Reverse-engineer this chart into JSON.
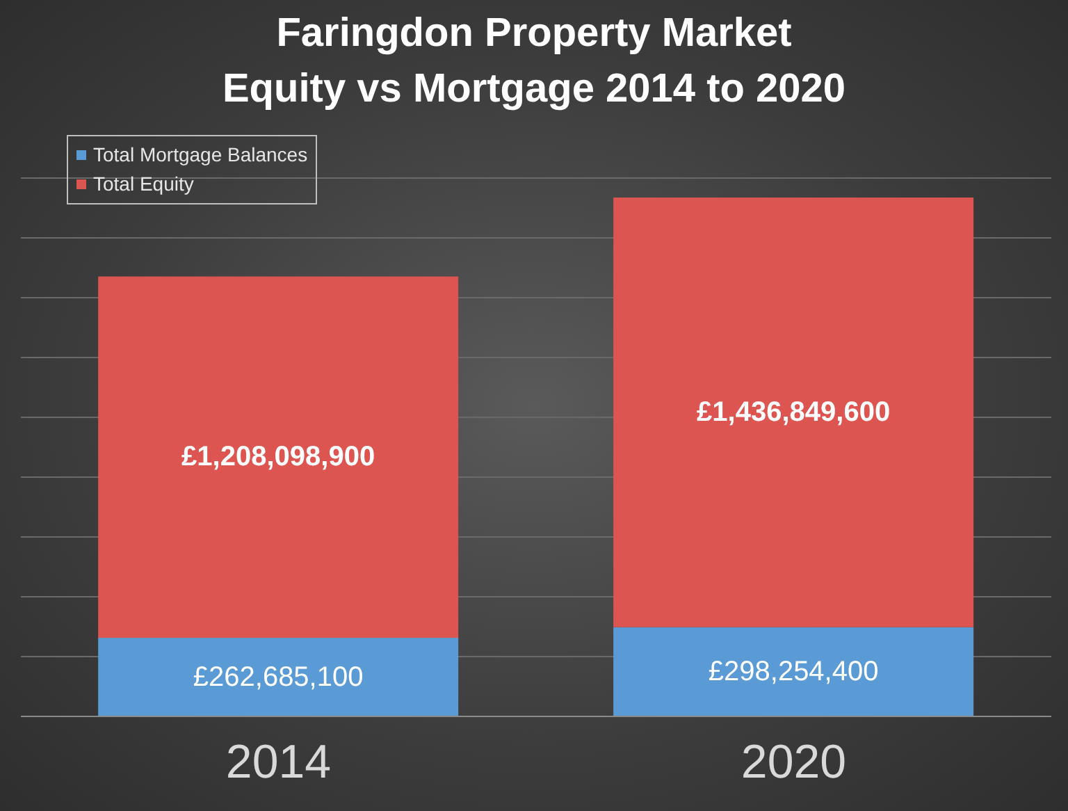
{
  "chart_data": {
    "type": "bar",
    "title": "Faringdon Property Market",
    "subtitle": "Equity vs Mortgage 2014 to 2020",
    "categories": [
      "2014",
      "2020"
    ],
    "stacked": true,
    "series": [
      {
        "name": "Total Mortgage Balances",
        "color": "#5b9bd5",
        "values": [
          262685100,
          298254400
        ],
        "value_labels": [
          "£262,685,100",
          "£298,254,400"
        ]
      },
      {
        "name": "Total Equity",
        "color": "#dc5550",
        "values": [
          1208098900,
          1436849600
        ],
        "value_labels": [
          "£1,208,098,900",
          "£1,436,849,600"
        ]
      }
    ],
    "ylim": [
      0,
      1800000000
    ],
    "yticks": [
      {
        "value": 0,
        "label": null
      },
      {
        "value": 200000000,
        "label": null
      },
      {
        "value": 400000000,
        "label": null
      },
      {
        "value": 600000000,
        "label": null
      },
      {
        "value": 800000000,
        "label": null
      },
      {
        "value": 1000000000,
        "label": null
      },
      {
        "value": 1200000000,
        "label": null
      },
      {
        "value": 1400000000,
        "label": null
      },
      {
        "value": 1600000000,
        "label": null
      },
      {
        "value": 1800000000,
        "label": null
      }
    ],
    "tick_labels": "x",
    "grid": "y",
    "legend": "top left"
  }
}
